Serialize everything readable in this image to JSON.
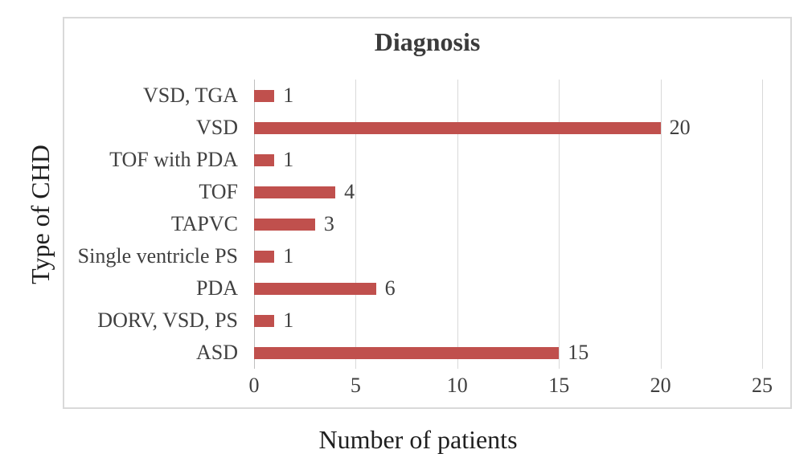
{
  "chart_data": {
    "type": "bar",
    "orientation": "horizontal",
    "title": "Diagnosis",
    "xlabel": "Number of patients",
    "ylabel": "Type of CHD",
    "categories": [
      "VSD, TGA",
      "VSD",
      "TOF with PDA",
      "TOF",
      "TAPVC",
      "Single ventricle PS",
      "PDA",
      "DORV, VSD, PS",
      "ASD"
    ],
    "values": [
      1,
      20,
      1,
      4,
      3,
      1,
      6,
      1,
      15
    ],
    "data_labels": [
      "1",
      "20",
      "1",
      "4",
      "3",
      "1",
      "6",
      "1",
      "15"
    ],
    "xlim": [
      0,
      25
    ],
    "xticks": [
      "0",
      "5",
      "10",
      "15",
      "20",
      "25"
    ],
    "grid": true,
    "legend": false
  },
  "style": {
    "bar_color": "#C0504D",
    "gridline_color": "#D9D9D9",
    "axis_line_color": "#BFBFBF",
    "frame_border_color": "#D9D9D9",
    "title_color": "#3B3B3B",
    "axis_title_color": "#1F1F1F",
    "tick_label_color": "#404040",
    "background_color": "#FFFFFF"
  }
}
